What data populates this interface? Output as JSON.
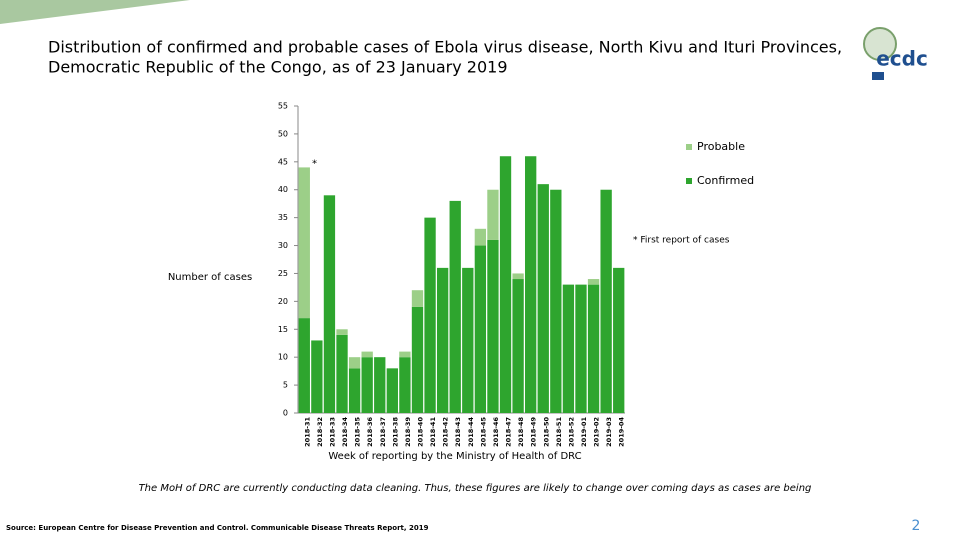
{
  "chart_data": {
    "type": "bar",
    "stacked": true,
    "title": "Distribution of confirmed and probable cases of Ebola virus disease, North Kivu and Ituri Provinces, Democratic Republic of the Congo, as of 23 January 2019",
    "y_label": "Number of cases",
    "x_label": "Week of reporting by the Ministry of Health of DRC",
    "categories": [
      "2018-31",
      "2018-32",
      "2018-33",
      "2018-34",
      "2018-35",
      "2018-36",
      "2018-37",
      "2018-38",
      "2018-39",
      "2018-40",
      "2018-41",
      "2018-42",
      "2018-43",
      "2018-44",
      "2018-45",
      "2018-46",
      "2018-47",
      "2018-48",
      "2018-49",
      "2018-50",
      "2018-51",
      "2018-52",
      "2019-01",
      "2019-02",
      "2019-03",
      "2019-04"
    ],
    "series": [
      {
        "name": "Confirmed",
        "color": "#2ea52e",
        "values": [
          17,
          13,
          39,
          14,
          8,
          10,
          10,
          8,
          10,
          19,
          35,
          26,
          38,
          26,
          30,
          31,
          46,
          24,
          46,
          41,
          40,
          23,
          23,
          23,
          40,
          26
        ]
      },
      {
        "name": "Probable",
        "color": "#9ccf88",
        "values": [
          27,
          0,
          0,
          1,
          2,
          1,
          0,
          0,
          1,
          3,
          0,
          0,
          0,
          0,
          3,
          9,
          0,
          1,
          0,
          0,
          0,
          0,
          0,
          1,
          0,
          0
        ]
      }
    ],
    "ylim": [
      0,
      55
    ],
    "yticks": [
      0,
      5,
      10,
      15,
      20,
      25,
      30,
      35,
      40,
      45,
      50,
      55
    ],
    "legend": "right",
    "first_report_marker": "*",
    "footnote": "* First report of cases"
  },
  "slide": {
    "note": "The MoH of DRC are currently conducting data cleaning. Thus, these figures are likely to change over coming days as cases are being",
    "source": "Source: European Centre for Disease Prevention and Control. Communicable Disease Threats Report, 2019",
    "page_number": 2,
    "logo_text": "ecdc"
  }
}
